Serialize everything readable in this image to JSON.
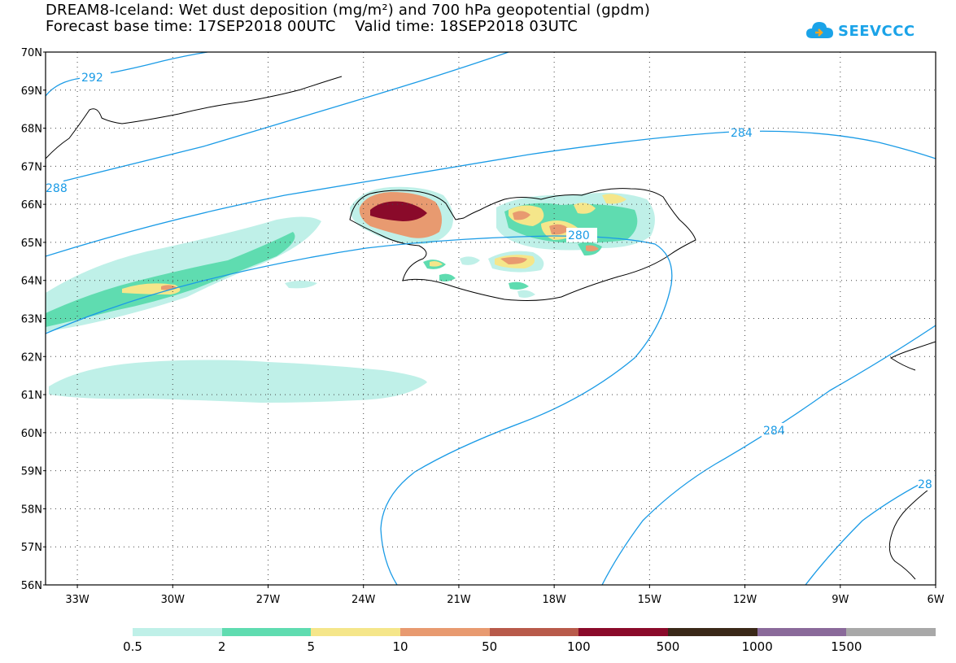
{
  "title": {
    "line1": "DREAM8-Iceland: Wet dust deposition (mg/m²) and 700 hPa geopotential (gpdm)",
    "line2": "Forecast base time: 17SEP2018 00UTC    Valid time: 18SEP2018 03UTC"
  },
  "logo": {
    "text": "SEEVCCC",
    "icon": "cloud-icon",
    "color": "#1aa3e8"
  },
  "map": {
    "lat_labels": [
      "70N",
      "69N",
      "68N",
      "67N",
      "66N",
      "65N",
      "64N",
      "63N",
      "62N",
      "61N",
      "60N",
      "59N",
      "58N",
      "57N",
      "56N"
    ],
    "lon_labels": [
      "33W",
      "30W",
      "27W",
      "24W",
      "21W",
      "18W",
      "15W",
      "12W",
      "9W",
      "6W"
    ],
    "contour_labels": [
      "292",
      "288",
      "284",
      "280",
      "284",
      "28"
    ],
    "contour_color": "#1a9be6"
  },
  "legend": {
    "colors": [
      "#bff0e8",
      "#5fdcb0",
      "#f5e68a",
      "#e89a70",
      "#b85a4a",
      "#8a0a2a",
      "#3a2818",
      "#8a6a9a",
      "#a8a8a8"
    ],
    "labels": [
      "0.5",
      "2",
      "5",
      "10",
      "50",
      "100",
      "500",
      "1000",
      "1500"
    ]
  }
}
